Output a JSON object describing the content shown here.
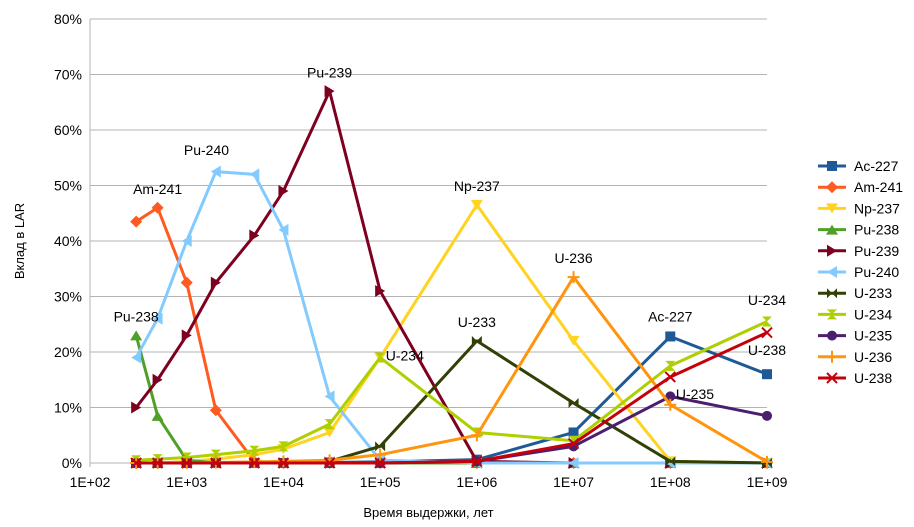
{
  "chart_data": {
    "type": "line",
    "title": "",
    "xlabel": "Время выдержки, лет",
    "ylabel": "Вклад в LAR",
    "x_scale": "log",
    "xlim": [
      100,
      1000000000
    ],
    "ylim": [
      0,
      80
    ],
    "x_ticks": [
      "1E+02",
      "1E+03",
      "1E+04",
      "1E+05",
      "1E+06",
      "1E+07",
      "1E+08",
      "1E+09"
    ],
    "y_ticks": [
      "0%",
      "10%",
      "20%",
      "30%",
      "40%",
      "50%",
      "60%",
      "70%",
      "80%"
    ],
    "grid": "horizontal",
    "legend_position": "right",
    "series": [
      {
        "name": "Ac-227",
        "color": "#1F5A96",
        "marker": "square",
        "x": [
          300,
          500,
          1000,
          2000,
          5000,
          10000,
          30000,
          100000,
          1000000,
          10000000,
          100000000,
          1000000000
        ],
        "values": [
          0,
          0,
          0,
          0,
          0,
          0,
          0.1,
          0.2,
          0.6,
          5.5,
          22.8,
          16
        ]
      },
      {
        "name": "Am-241",
        "color": "#FF5A1F",
        "marker": "diamond",
        "x": [
          300,
          500,
          1000,
          2000,
          5000,
          10000,
          30000,
          100000,
          1000000,
          10000000,
          100000000,
          1000000000
        ],
        "values": [
          43.5,
          46,
          32.5,
          9.5,
          0.3,
          0,
          0,
          0,
          0,
          0,
          0,
          0
        ]
      },
      {
        "name": "Np-237",
        "color": "#FFD320",
        "marker": "triangle-down",
        "x": [
          300,
          500,
          1000,
          2000,
          5000,
          10000,
          30000,
          100000,
          1000000,
          10000000,
          100000000,
          1000000000
        ],
        "values": [
          0,
          0,
          0.3,
          0.7,
          1.5,
          2.5,
          5.5,
          19,
          46.5,
          22,
          0.3,
          0
        ]
      },
      {
        "name": "Pu-238",
        "color": "#4FA028",
        "marker": "triangle-up",
        "x": [
          300,
          500,
          1000,
          2000,
          5000,
          10000,
          30000,
          100000,
          1000000,
          10000000,
          100000000,
          1000000000
        ],
        "values": [
          23,
          8.5,
          0.5,
          0,
          0,
          0,
          0,
          0,
          0,
          0,
          0,
          0
        ]
      },
      {
        "name": "Pu-239",
        "color": "#7E0021",
        "marker": "triangle-right",
        "x": [
          300,
          500,
          1000,
          2000,
          5000,
          10000,
          30000,
          100000,
          1000000,
          10000000,
          100000000,
          1000000000
        ],
        "values": [
          10,
          15,
          23,
          32.5,
          41,
          49,
          67,
          31,
          0.3,
          0,
          0,
          0
        ]
      },
      {
        "name": "Pu-240",
        "color": "#83CAFF",
        "marker": "triangle-left",
        "x": [
          300,
          500,
          1000,
          2000,
          5000,
          10000,
          30000,
          100000,
          1000000,
          10000000,
          100000000,
          1000000000
        ],
        "values": [
          19,
          26,
          40,
          52.5,
          52,
          42,
          12,
          0.5,
          0,
          0,
          0,
          0
        ]
      },
      {
        "name": "U-233",
        "color": "#314004",
        "marker": "bowtie",
        "x": [
          300,
          500,
          1000,
          2000,
          5000,
          10000,
          30000,
          100000,
          1000000,
          10000000,
          100000000,
          1000000000
        ],
        "values": [
          0,
          0,
          0,
          0,
          0,
          0,
          0.3,
          3,
          22,
          10.8,
          0.3,
          0
        ]
      },
      {
        "name": "U-234",
        "color": "#AECF00",
        "marker": "hourglass",
        "x": [
          300,
          500,
          1000,
          2000,
          5000,
          10000,
          30000,
          100000,
          1000000,
          10000000,
          100000000,
          1000000000
        ],
        "values": [
          0.5,
          0.7,
          1,
          1.5,
          2.2,
          3,
          7,
          19,
          5.5,
          4,
          17.5,
          25.5
        ]
      },
      {
        "name": "U-235",
        "color": "#4B1F6F",
        "marker": "circle",
        "x": [
          300,
          500,
          1000,
          2000,
          5000,
          10000,
          30000,
          100000,
          1000000,
          10000000,
          100000000,
          1000000000
        ],
        "values": [
          0,
          0,
          0,
          0,
          0,
          0,
          0,
          0,
          0.3,
          3,
          12,
          8.5
        ]
      },
      {
        "name": "U-236",
        "color": "#FF950E",
        "marker": "plus",
        "x": [
          300,
          500,
          1000,
          2000,
          5000,
          10000,
          30000,
          100000,
          1000000,
          10000000,
          100000000,
          1000000000
        ],
        "values": [
          0,
          0,
          0,
          0.1,
          0.2,
          0.3,
          0.5,
          1.5,
          5,
          33.5,
          10.5,
          0.2
        ]
      },
      {
        "name": "U-238",
        "color": "#C5000B",
        "marker": "x",
        "x": [
          300,
          500,
          1000,
          2000,
          5000,
          10000,
          30000,
          100000,
          1000000,
          10000000,
          100000000,
          1000000000
        ],
        "values": [
          0,
          0,
          0,
          0,
          0,
          0,
          0,
          0,
          0.3,
          3.5,
          15.5,
          23.5
        ]
      }
    ],
    "annotations": [
      {
        "text": "Am-241",
        "x": 500,
        "y": 48.5
      },
      {
        "text": "Pu-240",
        "x": 1600,
        "y": 55.5
      },
      {
        "text": "Pu-239",
        "x": 30000,
        "y": 69.5
      },
      {
        "text": "Pu-238",
        "x": 300,
        "y": 25.5
      },
      {
        "text": "Np-237",
        "x": 1000000,
        "y": 49
      },
      {
        "text": "U-234",
        "x": 180000,
        "y": 18.5
      },
      {
        "text": "U-233",
        "x": 1000000,
        "y": 24.5
      },
      {
        "text": "U-236",
        "x": 10000000,
        "y": 36
      },
      {
        "text": "Ac-227",
        "x": 100000000,
        "y": 25.5
      },
      {
        "text": "U-235",
        "x": 180000000,
        "y": 11.5
      },
      {
        "text": "U-234",
        "x": 1000000000,
        "y": 28.5
      },
      {
        "text": "U-238",
        "x": 1000000000,
        "y": 19.5
      }
    ]
  }
}
